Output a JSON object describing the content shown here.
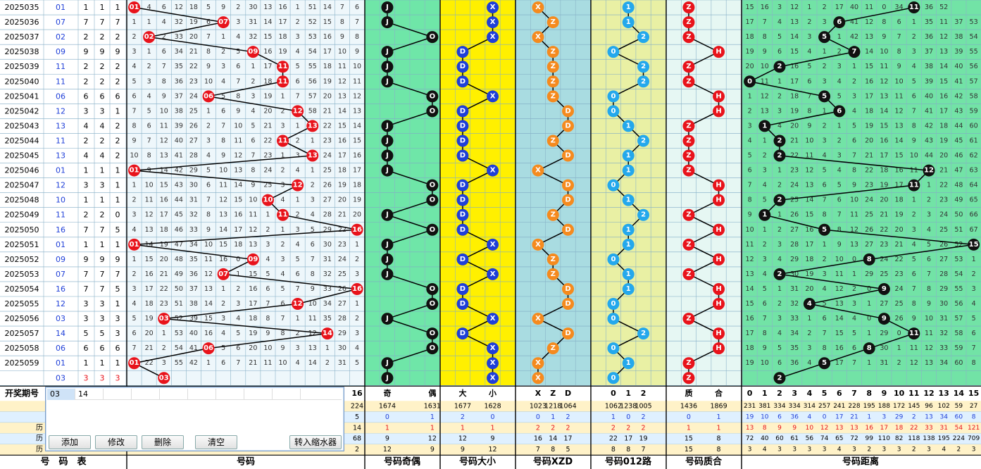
{
  "rows": [
    {
      "issue": "2025035",
      "num": "01",
      "a": 1,
      "b": 1,
      "c": 1,
      "odd": true,
      "big": false,
      "xzd": "X",
      "r012": 1,
      "prime": true,
      "dist": 11,
      "r1": [
        0,
        4,
        6,
        12,
        18,
        5,
        9,
        2,
        30,
        13,
        16,
        1,
        51,
        14,
        7,
        6
      ],
      "r7": [
        15,
        16,
        3,
        12,
        1,
        2,
        17,
        40,
        11,
        0,
        34,
        10,
        36,
        52
      ]
    },
    {
      "issue": "2025036",
      "num": "07",
      "a": 7,
      "b": 7,
      "c": 7,
      "odd": true,
      "big": false,
      "xzd": "Z",
      "r012": 1,
      "prime": true,
      "dist": 6,
      "r1": [
        1,
        1,
        4,
        32,
        19,
        6,
        0,
        3,
        31,
        14,
        17,
        2,
        52,
        15,
        8,
        7
      ],
      "r7": [
        17,
        7,
        4,
        13,
        2,
        3,
        0,
        41,
        12,
        8,
        6,
        1,
        35,
        11,
        37,
        53
      ]
    },
    {
      "issue": "2025037",
      "num": "02",
      "a": 2,
      "b": 2,
      "c": 2,
      "odd": false,
      "big": false,
      "xzd": "X",
      "r012": 2,
      "prime": true,
      "dist": 5,
      "r1": [
        2,
        0,
        2,
        33,
        20,
        7,
        1,
        4,
        32,
        15,
        18,
        3,
        53,
        16,
        9,
        8
      ],
      "r7": [
        18,
        8,
        5,
        14,
        3,
        0,
        1,
        42,
        13,
        9,
        7,
        2,
        36,
        12,
        38,
        54
      ]
    },
    {
      "issue": "2025038",
      "num": "09",
      "a": 9,
      "b": 9,
      "c": 9,
      "odd": true,
      "big": true,
      "xzd": "Z",
      "r012": 0,
      "prime": false,
      "dist": 7,
      "r1": [
        3,
        1,
        6,
        34,
        21,
        8,
        2,
        5,
        0,
        16,
        19,
        4,
        54,
        17,
        10,
        9
      ],
      "r7": [
        19,
        9,
        6,
        15,
        4,
        1,
        2,
        0,
        14,
        10,
        8,
        3,
        37,
        13,
        39,
        55
      ]
    },
    {
      "issue": "2025039",
      "num": "11",
      "a": 2,
      "b": 2,
      "c": 2,
      "odd": true,
      "big": true,
      "xzd": "Z",
      "r012": 2,
      "prime": true,
      "dist": 2,
      "r1": [
        4,
        2,
        7,
        35,
        22,
        9,
        3,
        6,
        1,
        17,
        0,
        5,
        55,
        18,
        11,
        10
      ],
      "r7": [
        20,
        10,
        0,
        16,
        5,
        2,
        3,
        1,
        15,
        11,
        9,
        4,
        38,
        14,
        40,
        56
      ]
    },
    {
      "issue": "2025040",
      "num": "11",
      "a": 2,
      "b": 2,
      "c": 2,
      "odd": true,
      "big": true,
      "xzd": "Z",
      "r012": 2,
      "prime": true,
      "dist": 0,
      "r1": [
        5,
        3,
        8,
        36,
        23,
        10,
        4,
        7,
        2,
        18,
        0,
        6,
        56,
        19,
        12,
        11
      ],
      "r7": [
        0,
        11,
        1,
        17,
        6,
        3,
        4,
        2,
        16,
        12,
        10,
        5,
        39,
        15,
        41,
        57
      ]
    },
    {
      "issue": "2025041",
      "num": "06",
      "a": 6,
      "b": 6,
      "c": 6,
      "odd": false,
      "big": false,
      "xzd": "Z",
      "r012": 0,
      "prime": false,
      "dist": 5,
      "r1": [
        6,
        4,
        9,
        37,
        24,
        0,
        5,
        8,
        3,
        19,
        1,
        7,
        57,
        20,
        13,
        12
      ],
      "r7": [
        1,
        12,
        2,
        18,
        7,
        0,
        5,
        3,
        17,
        13,
        11,
        6,
        40,
        16,
        42,
        58
      ]
    },
    {
      "issue": "2025042",
      "num": "12",
      "a": 3,
      "b": 3,
      "c": 1,
      "odd": false,
      "big": true,
      "xzd": "D",
      "r012": 0,
      "prime": false,
      "dist": 6,
      "r1": [
        7,
        5,
        10,
        38,
        25,
        1,
        6,
        9,
        4,
        20,
        2,
        0,
        58,
        21,
        14,
        13
      ],
      "r7": [
        2,
        13,
        3,
        19,
        8,
        1,
        0,
        4,
        18,
        14,
        12,
        7,
        41,
        17,
        43,
        59
      ]
    },
    {
      "issue": "2025043",
      "num": "13",
      "a": 4,
      "b": 4,
      "c": 2,
      "odd": true,
      "big": true,
      "xzd": "D",
      "r012": 1,
      "prime": true,
      "dist": 1,
      "r1": [
        8,
        6,
        11,
        39,
        26,
        2,
        7,
        10,
        5,
        21,
        3,
        1,
        0,
        22,
        15,
        14
      ],
      "r7": [
        3,
        0,
        4,
        20,
        9,
        2,
        1,
        5,
        19,
        15,
        13,
        8,
        42,
        18,
        44,
        60
      ]
    },
    {
      "issue": "2025044",
      "num": "11",
      "a": 2,
      "b": 2,
      "c": 2,
      "odd": true,
      "big": true,
      "xzd": "Z",
      "r012": 2,
      "prime": true,
      "dist": 2,
      "r1": [
        9,
        7,
        12,
        40,
        27,
        3,
        8,
        11,
        6,
        22,
        0,
        2,
        1,
        23,
        16,
        15
      ],
      "r7": [
        4,
        1,
        0,
        21,
        10,
        3,
        2,
        6,
        20,
        16,
        14,
        9,
        43,
        19,
        45,
        61
      ]
    },
    {
      "issue": "2025045",
      "num": "13",
      "a": 4,
      "b": 4,
      "c": 2,
      "odd": true,
      "big": true,
      "xzd": "D",
      "r012": 1,
      "prime": true,
      "dist": 2,
      "r1": [
        10,
        8,
        13,
        41,
        28,
        4,
        9,
        12,
        7,
        23,
        1,
        3,
        0,
        24,
        17,
        16
      ],
      "r7": [
        5,
        2,
        0,
        22,
        11,
        4,
        3,
        7,
        21,
        17,
        15,
        10,
        44,
        20,
        46,
        62
      ]
    },
    {
      "issue": "2025046",
      "num": "01",
      "a": 1,
      "b": 1,
      "c": 1,
      "odd": true,
      "big": false,
      "xzd": "X",
      "r012": 1,
      "prime": true,
      "dist": 12,
      "r1": [
        0,
        9,
        14,
        42,
        29,
        5,
        10,
        13,
        8,
        24,
        2,
        4,
        1,
        25,
        18,
        17
      ],
      "r7": [
        6,
        3,
        1,
        23,
        12,
        5,
        4,
        8,
        22,
        18,
        16,
        11,
        0,
        21,
        47,
        63
      ]
    },
    {
      "issue": "2025047",
      "num": "12",
      "a": 3,
      "b": 3,
      "c": 1,
      "odd": false,
      "big": true,
      "xzd": "D",
      "r012": 0,
      "prime": false,
      "dist": 11,
      "r1": [
        1,
        10,
        15,
        43,
        30,
        6,
        11,
        14,
        9,
        25,
        3,
        0,
        2,
        26,
        19,
        18
      ],
      "r7": [
        7,
        4,
        2,
        24,
        13,
        6,
        5,
        9,
        23,
        19,
        17,
        0,
        1,
        22,
        48,
        64
      ]
    },
    {
      "issue": "2025048",
      "num": "10",
      "a": 1,
      "b": 1,
      "c": 1,
      "odd": false,
      "big": true,
      "xzd": "D",
      "r012": 1,
      "prime": false,
      "dist": 2,
      "r1": [
        2,
        11,
        16,
        44,
        31,
        7,
        12,
        15,
        10,
        0,
        4,
        1,
        3,
        27,
        20,
        19
      ],
      "r7": [
        8,
        5,
        0,
        25,
        14,
        7,
        6,
        10,
        24,
        20,
        18,
        1,
        2,
        23,
        49,
        65
      ]
    },
    {
      "issue": "2025049",
      "num": "11",
      "a": 2,
      "b": 2,
      "c": 0,
      "odd": true,
      "big": true,
      "xzd": "Z",
      "r012": 2,
      "prime": true,
      "dist": 1,
      "r1": [
        3,
        12,
        17,
        45,
        32,
        8,
        13,
        16,
        11,
        1,
        0,
        2,
        4,
        28,
        21,
        20
      ],
      "r7": [
        9,
        0,
        1,
        26,
        15,
        8,
        7,
        11,
        25,
        21,
        19,
        2,
        3,
        24,
        50,
        66
      ]
    },
    {
      "issue": "2025050",
      "num": "16",
      "a": 7,
      "b": 7,
      "c": 5,
      "odd": false,
      "big": true,
      "xzd": "D",
      "r012": 1,
      "prime": false,
      "dist": 5,
      "r1": [
        4,
        13,
        18,
        46,
        33,
        9,
        14,
        17,
        12,
        2,
        1,
        3,
        5,
        29,
        22,
        0
      ],
      "r7": [
        10,
        1,
        2,
        27,
        16,
        0,
        8,
        12,
        26,
        22,
        20,
        3,
        4,
        25,
        51,
        67
      ]
    },
    {
      "issue": "2025051",
      "num": "01",
      "a": 1,
      "b": 1,
      "c": 1,
      "odd": true,
      "big": false,
      "xzd": "X",
      "r012": 1,
      "prime": true,
      "dist": 15,
      "r1": [
        0,
        14,
        19,
        47,
        34,
        10,
        15,
        18,
        13,
        3,
        2,
        4,
        6,
        30,
        23,
        1
      ],
      "r7": [
        11,
        2,
        3,
        28,
        17,
        1,
        9,
        13,
        27,
        23,
        21,
        4,
        5,
        26,
        52,
        0
      ]
    },
    {
      "issue": "2025052",
      "num": "09",
      "a": 9,
      "b": 9,
      "c": 9,
      "odd": true,
      "big": true,
      "xzd": "Z",
      "r012": 0,
      "prime": false,
      "dist": 8,
      "r1": [
        1,
        15,
        20,
        48,
        35,
        11,
        16,
        0,
        14,
        4,
        3,
        5,
        7,
        31,
        24,
        2
      ],
      "r7": [
        12,
        3,
        4,
        29,
        18,
        2,
        10,
        0,
        28,
        24,
        22,
        5,
        6,
        27,
        53,
        1
      ]
    },
    {
      "issue": "2025053",
      "num": "07",
      "a": 7,
      "b": 7,
      "c": 7,
      "odd": true,
      "big": false,
      "xzd": "Z",
      "r012": 1,
      "prime": true,
      "dist": 2,
      "r1": [
        2,
        16,
        21,
        49,
        36,
        12,
        0,
        1,
        15,
        5,
        4,
        6,
        8,
        32,
        25,
        3
      ],
      "r7": [
        13,
        4,
        0,
        30,
        19,
        3,
        11,
        1,
        29,
        25,
        23,
        6,
        7,
        28,
        54,
        2
      ]
    },
    {
      "issue": "2025054",
      "num": "16",
      "a": 7,
      "b": 7,
      "c": 5,
      "odd": false,
      "big": true,
      "xzd": "D",
      "r012": 1,
      "prime": false,
      "dist": 9,
      "r1": [
        3,
        17,
        22,
        50,
        37,
        13,
        1,
        2,
        16,
        6,
        5,
        7,
        9,
        33,
        26,
        0
      ],
      "r7": [
        14,
        5,
        1,
        31,
        20,
        4,
        12,
        2,
        0,
        26,
        24,
        7,
        8,
        29,
        55,
        3
      ]
    },
    {
      "issue": "2025055",
      "num": "12",
      "a": 3,
      "b": 3,
      "c": 1,
      "odd": false,
      "big": true,
      "xzd": "D",
      "r012": 0,
      "prime": false,
      "dist": 4,
      "r1": [
        4,
        18,
        23,
        51,
        38,
        14,
        2,
        3,
        17,
        7,
        6,
        0,
        10,
        34,
        27,
        1
      ],
      "r7": [
        15,
        6,
        2,
        32,
        0,
        5,
        13,
        3,
        1,
        27,
        25,
        8,
        9,
        30,
        56,
        4
      ]
    },
    {
      "issue": "2025056",
      "num": "03",
      "a": 3,
      "b": 3,
      "c": 3,
      "odd": true,
      "big": false,
      "xzd": "X",
      "r012": 0,
      "prime": true,
      "dist": 9,
      "r1": [
        5,
        19,
        0,
        52,
        39,
        15,
        3,
        4,
        18,
        8,
        7,
        1,
        11,
        35,
        28,
        2
      ],
      "r7": [
        16,
        7,
        3,
        33,
        1,
        6,
        14,
        4,
        0,
        28,
        26,
        9,
        10,
        31,
        57,
        5
      ]
    },
    {
      "issue": "2025057",
      "num": "14",
      "a": 5,
      "b": 5,
      "c": 3,
      "odd": false,
      "big": true,
      "xzd": "D",
      "r012": 2,
      "prime": false,
      "dist": 11,
      "r1": [
        6,
        20,
        1,
        53,
        40,
        16,
        4,
        5,
        19,
        9,
        8,
        2,
        12,
        0,
        29,
        3
      ],
      "r7": [
        17,
        8,
        4,
        34,
        2,
        7,
        15,
        5,
        1,
        29,
        0,
        10,
        11,
        32,
        58,
        6
      ]
    },
    {
      "issue": "2025058",
      "num": "06",
      "a": 6,
      "b": 6,
      "c": 6,
      "odd": false,
      "big": false,
      "xzd": "Z",
      "r012": 0,
      "prime": false,
      "dist": 8,
      "r1": [
        7,
        21,
        2,
        54,
        41,
        0,
        5,
        6,
        20,
        10,
        9,
        3,
        13,
        1,
        30,
        4
      ],
      "r7": [
        18,
        9,
        5,
        35,
        3,
        8,
        16,
        6,
        0,
        30,
        1,
        11,
        12,
        33,
        59,
        7
      ]
    },
    {
      "issue": "2025059",
      "num": "01",
      "a": 1,
      "b": 1,
      "c": 1,
      "odd": true,
      "big": false,
      "xzd": "X",
      "r012": 1,
      "prime": true,
      "dist": 5,
      "r1": [
        0,
        22,
        3,
        55,
        42,
        1,
        6,
        7,
        21,
        11,
        10,
        4,
        14,
        2,
        31,
        5
      ],
      "r7": [
        19,
        10,
        6,
        36,
        4,
        0,
        17,
        7,
        1,
        31,
        2,
        12,
        13,
        34,
        60,
        8
      ]
    }
  ],
  "predict": {
    "num": "03",
    "a": "3",
    "b": "3",
    "c": "3",
    "dist": 2
  },
  "header_row": {
    "label": "开奖期号",
    "num": "03",
    "xzd": [
      "X",
      "Z",
      "D"
    ],
    "r012": [
      "0",
      "1",
      "2"
    ],
    "pz": [
      "质",
      "合"
    ],
    "oe": [
      "奇",
      "偶"
    ],
    "bs": [
      "大",
      "小"
    ],
    "dist_nums": [
      "0",
      "1",
      "2",
      "3",
      "4",
      "5",
      "6",
      "7",
      "8",
      "9",
      "10",
      "11",
      "12",
      "13",
      "14",
      "15"
    ],
    "num_last": "16"
  },
  "stats": {
    "s1": {
      "hm_tail": "224",
      "oe": [
        "1674",
        "1631"
      ],
      "bs": [
        "1677",
        "1628"
      ],
      "xzd": [
        "1023",
        "1218",
        "1064"
      ],
      "r012": [
        "1062",
        "1238",
        "1005"
      ],
      "pz": [
        "1436",
        "1869"
      ],
      "dist": [
        "231",
        "381",
        "334",
        "334",
        "314",
        "257",
        "241",
        "228",
        "195",
        "188",
        "172",
        "145",
        "96",
        "102",
        "59",
        "27"
      ]
    },
    "s2": {
      "hm_tail": "5",
      "oe": [
        "0",
        "1"
      ],
      "bs": [
        "2",
        "0"
      ],
      "xzd": [
        "0",
        "1",
        "2"
      ],
      "r012": [
        "1",
        "0",
        "2"
      ],
      "pz": [
        "0",
        "1"
      ],
      "dist": [
        "19",
        "10",
        "6",
        "36",
        "4",
        "0",
        "17",
        "21",
        "1",
        "3",
        "29",
        "2",
        "13",
        "34",
        "60",
        "8"
      ]
    },
    "s3": {
      "hm_tail": "14",
      "oe": [
        "1",
        "1"
      ],
      "bs": [
        "1",
        "1"
      ],
      "xzd": [
        "2",
        "2",
        "2"
      ],
      "r012": [
        "2",
        "2",
        "2"
      ],
      "pz": [
        "1",
        "1"
      ],
      "dist": [
        "13",
        "8",
        "9",
        "9",
        "10",
        "12",
        "13",
        "13",
        "16",
        "17",
        "18",
        "22",
        "33",
        "31",
        "54",
        "121"
      ]
    },
    "s4": {
      "hm_tail": "68",
      "oe": [
        "9",
        "12"
      ],
      "bs": [
        "12",
        "9"
      ],
      "xzd": [
        "16",
        "14",
        "17"
      ],
      "r012": [
        "22",
        "17",
        "19"
      ],
      "pz": [
        "15",
        "8"
      ],
      "dist": [
        "72",
        "40",
        "60",
        "61",
        "56",
        "74",
        "65",
        "72",
        "99",
        "110",
        "82",
        "118",
        "138",
        "195",
        "224",
        "709"
      ]
    },
    "s5": {
      "hm_tail": "2",
      "oe": [
        "12",
        "9"
      ],
      "bs": [
        "9",
        "12"
      ],
      "xzd": [
        "7",
        "8",
        "5"
      ],
      "r012": [
        "8",
        "8",
        "7"
      ],
      "pz": [
        "15",
        "8"
      ],
      "dist": [
        "3",
        "4",
        "3",
        "3",
        "3",
        "3",
        "4",
        "3",
        "2",
        "3",
        "3",
        "2",
        "3",
        "4",
        "2",
        "3"
      ]
    }
  },
  "side_labels": [
    "历",
    "历",
    "历"
  ],
  "footer": [
    "号　码　表",
    "号码",
    "号码奇偶",
    "号码大小",
    "号码XZD",
    "号码012路",
    "号码质合",
    "号码距离"
  ],
  "popup": {
    "cells": [
      "03",
      "14"
    ],
    "buttons": [
      "添加",
      "修改",
      "删除",
      "清空",
      "转入缩水器"
    ]
  },
  "colors": {
    "red": "#e8131b",
    "blue": "#1f3fd8",
    "black": "#111111",
    "orange": "#f58a1e",
    "cyan": "#24a8ec",
    "odd_bg": "#6fe6a8",
    "big_bg": "#fff000",
    "xzd_bg": "#a9dce1",
    "r012_bg": "#e9f0a4",
    "pz_bg": "#e6f7f3",
    "dist_bg": "#72e3a6",
    "gridline": "#6aa0c0"
  }
}
